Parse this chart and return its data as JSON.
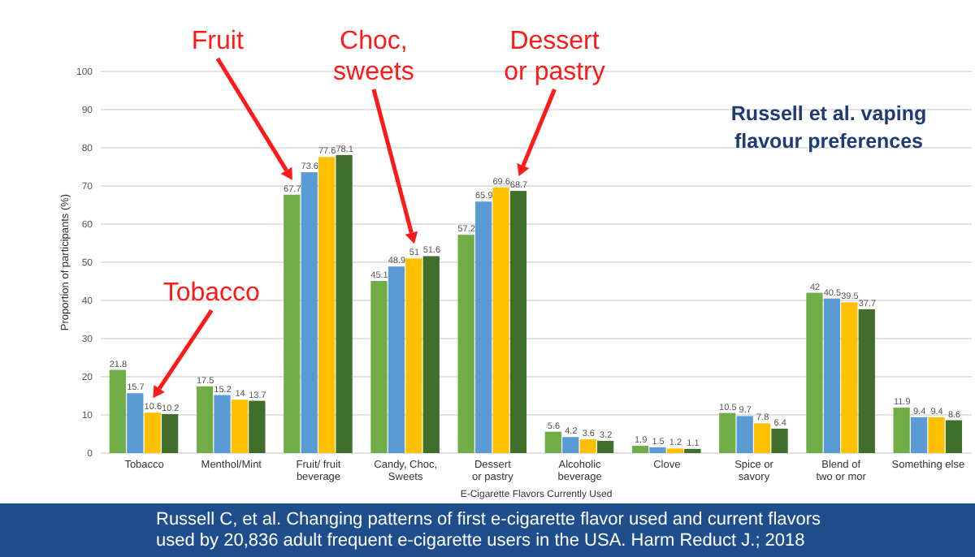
{
  "chart_data": {
    "type": "bar",
    "title": "Russell et al. vaping flavour preferences",
    "xlabel": "E-Cigarette Flavors Currently Used",
    "ylabel": "Proportion of participants (%)",
    "categories": [
      "Tobacco",
      "Menthol/Mint",
      "Fruit/ fruit beverage",
      "Candy, Choc, Sweets",
      "Dessert or pastry",
      "Alcoholic beverage",
      "Clove",
      "Spice or savory",
      "Blend of two or mor",
      "Something else"
    ],
    "series": [
      {
        "color": "#70ad47",
        "values": [
          21.8,
          17.5,
          67.7,
          45.1,
          57.2,
          5.6,
          1.9,
          10.5,
          42,
          11.9
        ]
      },
      {
        "color": "#5b9bd5",
        "values": [
          15.7,
          15.2,
          73.6,
          48.9,
          65.9,
          4.2,
          1.5,
          9.7,
          40.5,
          9.4
        ]
      },
      {
        "color": "#ffc000",
        "values": [
          10.6,
          14,
          77.6,
          51,
          69.6,
          3.6,
          1.2,
          7.8,
          39.5,
          9.4
        ]
      },
      {
        "color": "#3f6f2a",
        "values": [
          10.2,
          13.7,
          78.1,
          51.6,
          68.7,
          3.2,
          1.1,
          6.4,
          37.7,
          8.6
        ]
      }
    ],
    "ylim": [
      0,
      100
    ],
    "yticks": [
      0,
      10,
      20,
      30,
      40,
      50,
      60,
      70,
      80,
      90,
      100
    ],
    "grid": "y",
    "data_labels": true,
    "annotations": [
      "Fruit",
      "Choc, sweets",
      "Dessert or pastry",
      "Tobacco",
      "Russell C, et al. Changing patterns of first e-cigarette flavor used and current flavors used by 20,836 adult frequent e-cigarette users in the USA. Harm Reduct J.; 2018"
    ]
  }
}
